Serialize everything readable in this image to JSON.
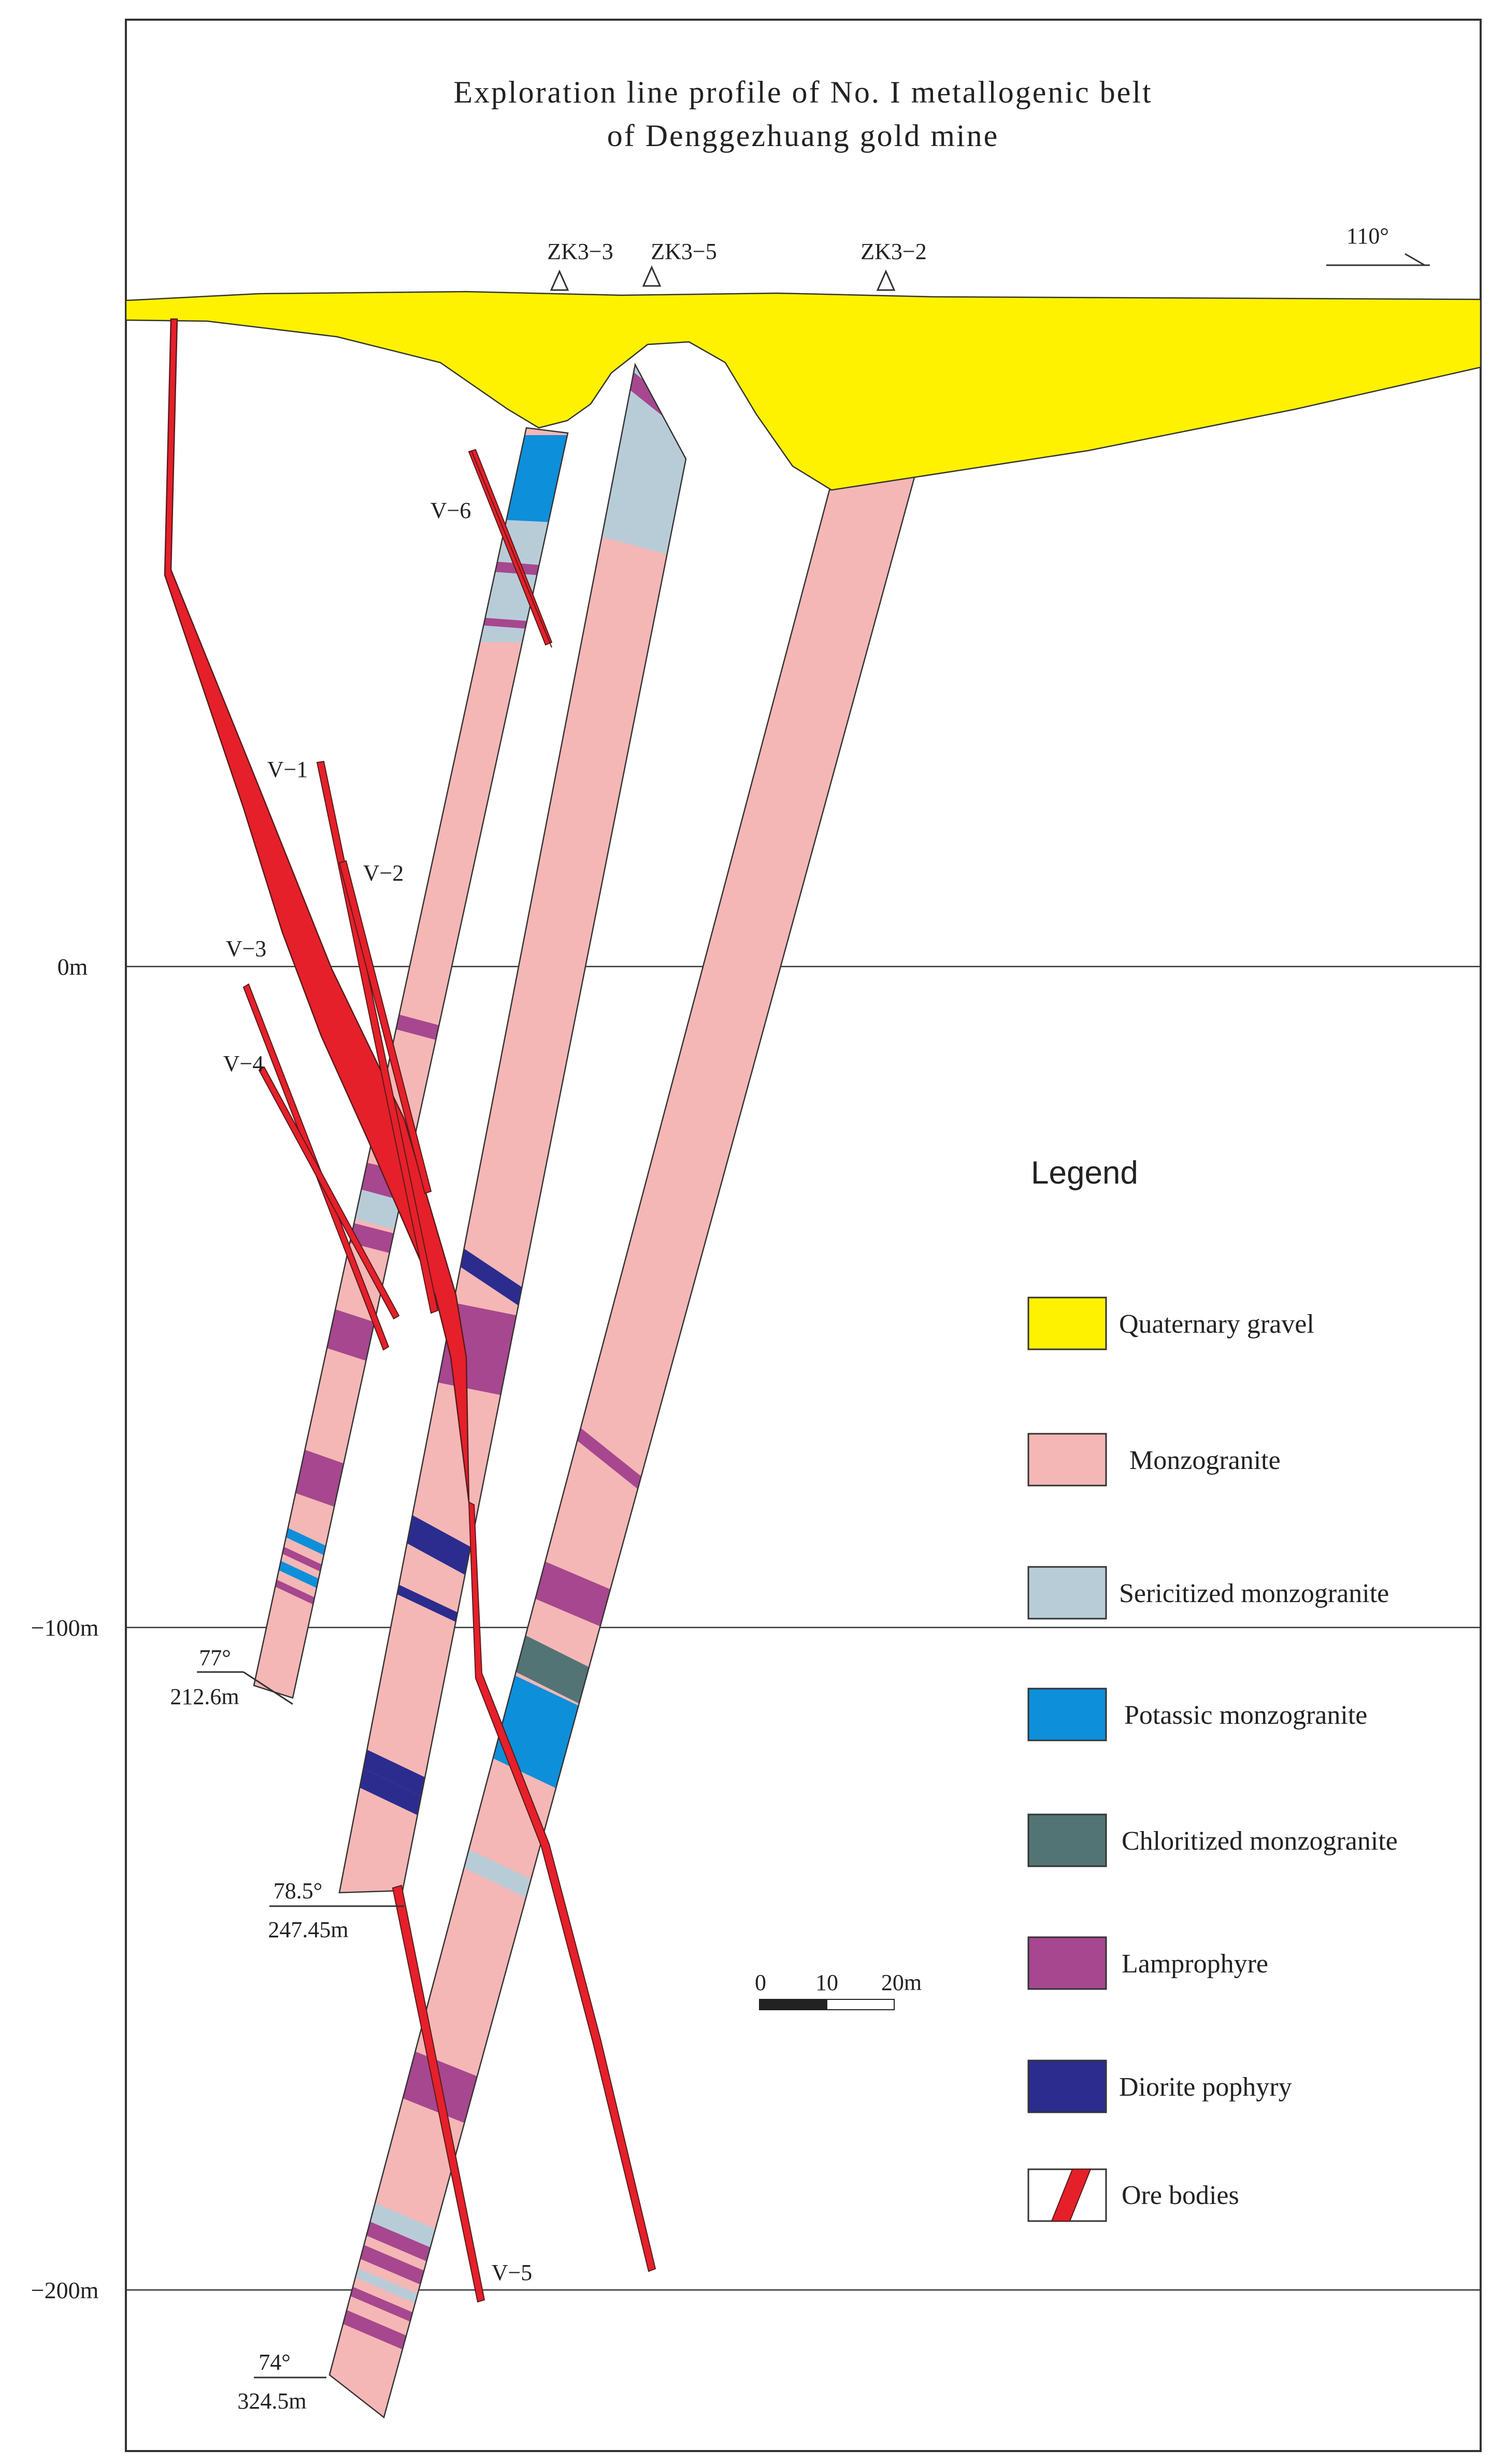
{
  "title": {
    "line1": "Exploration line profile of No. I metallogenic belt",
    "line2": "of Denggezhuang gold mine"
  },
  "orientation": "110°",
  "boreholes": [
    {
      "name": "ZK3−3",
      "dip": "77°",
      "depth": "212.6m"
    },
    {
      "name": "ZK3−5",
      "dip": "78.5°",
      "depth": "247.45m"
    },
    {
      "name": "ZK3−2",
      "dip": "74°",
      "depth": "324.5m"
    }
  ],
  "elevations": [
    "0m",
    "−100m",
    "−200m"
  ],
  "veins": [
    "V−1",
    "V−2",
    "V−3",
    "V−4",
    "V−5",
    "V−6"
  ],
  "scale_bar": {
    "ticks": [
      "0",
      "10",
      "20m"
    ]
  },
  "legend": {
    "title": "Legend",
    "items": [
      {
        "label": "Quaternary gravel",
        "color": "#FFF200"
      },
      {
        "label": "Monzogranite",
        "color": "#F4B7B5"
      },
      {
        "label": "Sericitized monzogranite",
        "color": "#B8CCD8"
      },
      {
        "label": "Potassic monzogranite",
        "color": "#0E8FDA"
      },
      {
        "label": "Chloritized monzogranite",
        "color": "#537474"
      },
      {
        "label": "Lamprophyre",
        "color": "#A7478F"
      },
      {
        "label": "Diorite pophyry",
        "color": "#2B2C8E"
      },
      {
        "label": "Ore bodies",
        "color": "#E5202A"
      }
    ]
  }
}
